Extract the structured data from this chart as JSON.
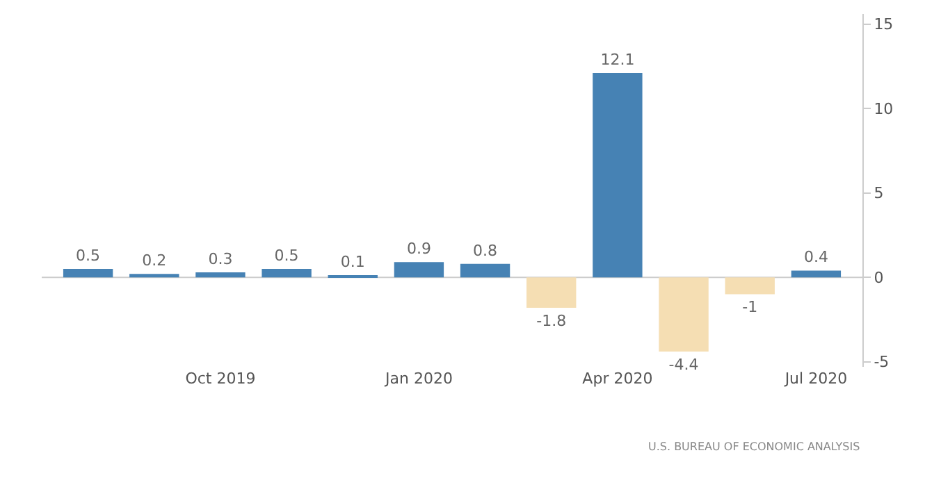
{
  "chart_data": {
    "type": "bar",
    "categories": [
      null,
      null,
      "Oct 2019",
      null,
      null,
      "Jan 2020",
      null,
      null,
      "Apr 2020",
      null,
      null,
      "Jul 2020"
    ],
    "values": [
      0.5,
      0.2,
      0.3,
      0.5,
      0.1,
      0.9,
      0.8,
      -1.8,
      12.1,
      -4.4,
      -1,
      0.4
    ],
    "colors": [
      "#4682b4",
      "#4682b4",
      "#4682b4",
      "#4682b4",
      "#4682b4",
      "#4682b4",
      "#4682b4",
      "#f5deb3",
      "#4682b4",
      "#f5deb3",
      "#f5deb3",
      "#4682b4"
    ],
    "ylim": [
      -5.3,
      15.6
    ],
    "yticks": [
      -5,
      0,
      5,
      10,
      15
    ],
    "grid": false,
    "data_labels": true,
    "ref_lines": [
      {
        "axis": "y",
        "value": 0,
        "color": "#cccccc"
      }
    ],
    "annotations": [
      "U.S. BUREAU OF ECONOMIC ANALYSIS"
    ]
  }
}
